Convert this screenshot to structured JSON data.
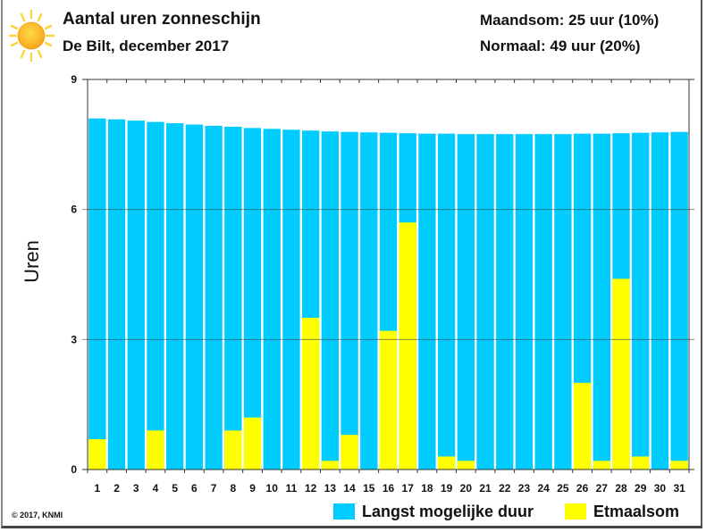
{
  "header": {
    "title": "Aantal uren zonneschijn",
    "subtitle": "De Bilt, december 2017",
    "monthly_sum": "Maandsom: 25 uur (10%)",
    "normal": "Normaal: 49 uur (20%)",
    "icon": "sun-icon"
  },
  "footer": {
    "copyright": "© 2017, KNMI"
  },
  "colors": {
    "max_duration": "#00CCFF",
    "daily_sum": "#FFFF00",
    "axis": "#333333",
    "gridline": "#444444"
  },
  "legend": [
    {
      "label": "Langst mogelijke duur",
      "color": "#00CCFF"
    },
    {
      "label": "Etmaalsom",
      "color": "#FFFF00"
    }
  ],
  "chart_data": {
    "type": "bar",
    "title": "Aantal uren zonneschijn",
    "subtitle": "De Bilt, december 2017",
    "xlabel": "",
    "ylabel": "Uren",
    "ylim": [
      0,
      9
    ],
    "yticks": [
      0,
      3,
      6,
      9
    ],
    "grid": true,
    "legend_position": "bottom-right",
    "categories": [
      "1",
      "2",
      "3",
      "4",
      "5",
      "6",
      "7",
      "8",
      "9",
      "10",
      "11",
      "12",
      "13",
      "14",
      "15",
      "16",
      "17",
      "18",
      "19",
      "20",
      "21",
      "22",
      "23",
      "24",
      "25",
      "26",
      "27",
      "28",
      "29",
      "30",
      "31"
    ],
    "series": [
      {
        "name": "Langst mogelijke duur",
        "color": "#00CCFF",
        "values": [
          8.1,
          8.08,
          8.05,
          8.02,
          7.99,
          7.96,
          7.93,
          7.91,
          7.88,
          7.86,
          7.84,
          7.82,
          7.8,
          7.79,
          7.78,
          7.77,
          7.76,
          7.75,
          7.75,
          7.74,
          7.74,
          7.74,
          7.74,
          7.74,
          7.74,
          7.75,
          7.75,
          7.76,
          7.77,
          7.78,
          7.79
        ]
      },
      {
        "name": "Etmaalsom",
        "color": "#FFFF00",
        "values": [
          0.7,
          0,
          0,
          0.9,
          0,
          0,
          0,
          0.9,
          1.2,
          0,
          0,
          3.5,
          0.2,
          0.8,
          0,
          3.2,
          5.7,
          0,
          0.3,
          0.2,
          0,
          0,
          0,
          0,
          0,
          2.0,
          0.2,
          4.4,
          0.3,
          0,
          0.2
        ]
      }
    ],
    "annotations": [
      "Maandsom: 25 uur (10%)",
      "Normaal: 49 uur (20%)"
    ]
  }
}
